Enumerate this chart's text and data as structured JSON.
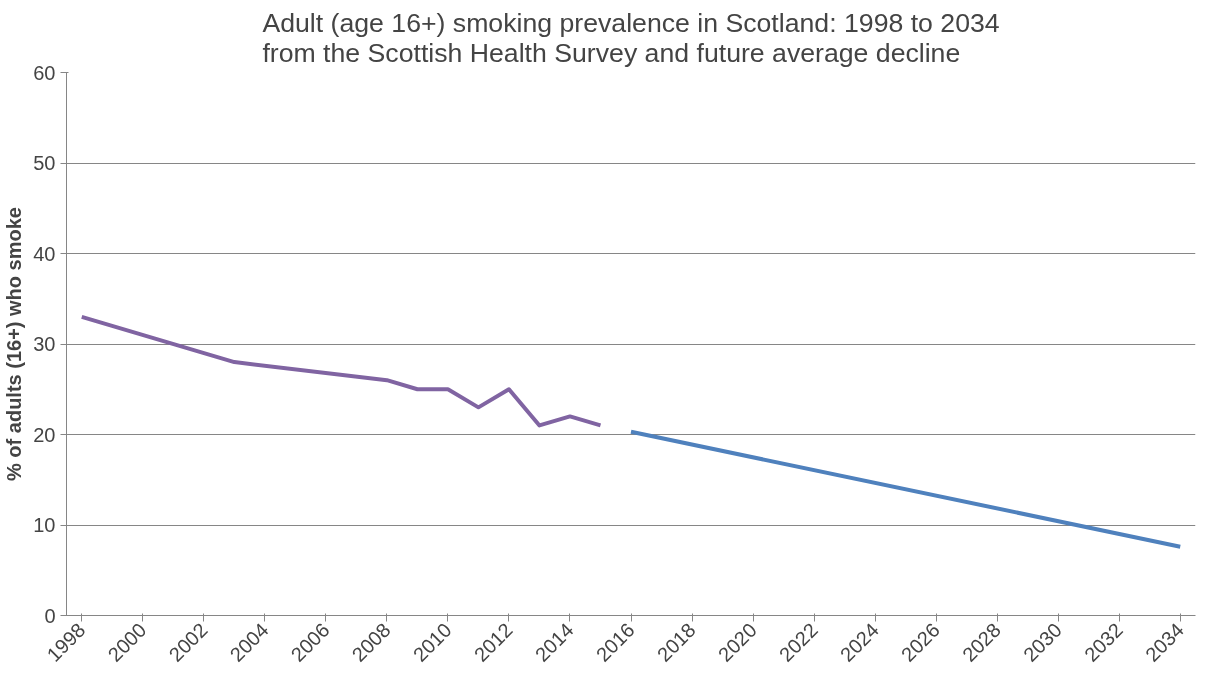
{
  "chart_data": {
    "type": "line",
    "title": "Adult (age 16+) smoking prevalence in Scotland: 1998 to 2034\nfrom the Scottish Health Survey and future average decline",
    "ylabel": "% of adults (16+) who smoke",
    "series": [
      {
        "color": "#8064a2",
        "x": [
          1998,
          2003,
          2008,
          2009,
          2010,
          2011,
          2012,
          2013,
          2014,
          2015
        ],
        "values": [
          33,
          28,
          26,
          25,
          25,
          23,
          25,
          21,
          22,
          21
        ]
      },
      {
        "color": "#4f81bd",
        "x": [
          2016,
          2034
        ],
        "values": [
          20.3,
          7.6
        ]
      }
    ],
    "xlim": [
      1997.5,
      2034.5
    ],
    "xticks": [
      1998,
      2000,
      2002,
      2004,
      2006,
      2008,
      2010,
      2012,
      2014,
      2016,
      2018,
      2020,
      2022,
      2024,
      2026,
      2028,
      2030,
      2032,
      2034
    ],
    "ylim": [
      0,
      60
    ],
    "yticks": [
      0,
      10,
      20,
      30,
      40,
      50,
      60
    ],
    "grid": "y",
    "marker": "none",
    "line_style": "solid"
  }
}
